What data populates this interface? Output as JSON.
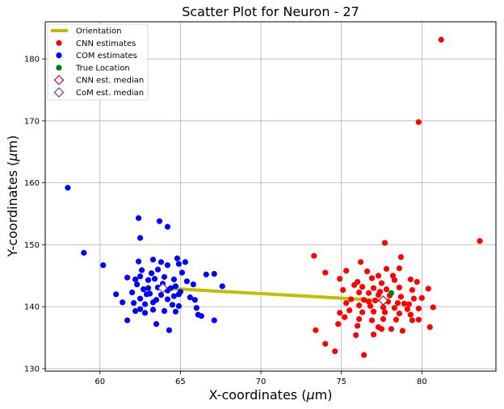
{
  "chart_data": {
    "type": "scatter",
    "title": "Scatter Plot for Neuron - 27",
    "xlabel_prefix": "X-coordinates (",
    "xlabel_unit_greek": "μ",
    "xlabel_unit_rest": "m)",
    "ylabel_prefix": "Y-coordinates (",
    "ylabel_unit_greek": "μ",
    "ylabel_unit_rest": "m)",
    "xlim": [
      56.6,
      84.6
    ],
    "ylim": [
      129.6,
      186.0
    ],
    "xticks": [
      60,
      65,
      70,
      75,
      80
    ],
    "yticks": [
      130,
      140,
      150,
      160,
      170,
      180
    ],
    "grid": true,
    "legend_position": "top-left",
    "legend": [
      {
        "label": "Orientation",
        "kind": "line",
        "color": "#bfbf00"
      },
      {
        "label": "CNN estimates",
        "kind": "dot",
        "color": "#ff0000"
      },
      {
        "label": "COM estimates",
        "kind": "dot",
        "color": "#0000ff"
      },
      {
        "label": "True Location",
        "kind": "dot",
        "color": "#008000"
      },
      {
        "label": "CNN est. median",
        "kind": "diamond",
        "color": "#c8102e"
      },
      {
        "label": "CoM est. median",
        "kind": "diamond",
        "color": "#7030a0"
      }
    ],
    "series": [
      {
        "name": "CNN estimates",
        "color": "#ff0000",
        "points": [
          [
            81.2,
            183.1
          ],
          [
            79.8,
            169.8
          ],
          [
            83.6,
            150.6
          ],
          [
            77.7,
            150.3
          ],
          [
            73.3,
            148.2
          ],
          [
            78.7,
            148.0
          ],
          [
            76.2,
            147.2
          ],
          [
            75.3,
            145.8
          ],
          [
            76.6,
            145.7
          ],
          [
            74.0,
            145.5
          ],
          [
            77.8,
            146.1
          ],
          [
            78.6,
            146.2
          ],
          [
            77.3,
            145.0
          ],
          [
            76.9,
            144.6
          ],
          [
            74.9,
            144.5
          ],
          [
            76.0,
            144.0
          ],
          [
            77.5,
            143.8
          ],
          [
            78.3,
            144.3
          ],
          [
            79.3,
            144.4
          ],
          [
            79.7,
            144.0
          ],
          [
            76.3,
            143.2
          ],
          [
            77.0,
            143.0
          ],
          [
            77.8,
            142.8
          ],
          [
            78.6,
            143.1
          ],
          [
            79.4,
            142.7
          ],
          [
            80.4,
            142.9
          ],
          [
            75.1,
            142.7
          ],
          [
            76.1,
            142.3
          ],
          [
            76.7,
            142.2
          ],
          [
            77.3,
            141.9
          ],
          [
            78.0,
            141.8
          ],
          [
            78.7,
            141.6
          ],
          [
            79.5,
            141.3
          ],
          [
            80.0,
            141.4
          ],
          [
            75.6,
            141.2
          ],
          [
            76.4,
            141.1
          ],
          [
            77.1,
            141.0
          ],
          [
            77.9,
            140.8
          ],
          [
            78.5,
            140.6
          ],
          [
            79.2,
            140.4
          ],
          [
            75.3,
            140.6
          ],
          [
            76.1,
            140.2
          ],
          [
            76.8,
            140.1
          ],
          [
            77.6,
            139.9
          ],
          [
            78.3,
            139.8
          ],
          [
            79.1,
            139.6
          ],
          [
            79.8,
            139.7
          ],
          [
            80.7,
            139.9
          ],
          [
            74.9,
            139.0
          ],
          [
            75.5,
            139.4
          ],
          [
            76.3,
            139.1
          ],
          [
            77.0,
            139.2
          ],
          [
            77.7,
            139.1
          ],
          [
            78.6,
            138.9
          ],
          [
            79.3,
            138.7
          ],
          [
            75.2,
            138.3
          ],
          [
            76.1,
            138.0
          ],
          [
            76.9,
            137.8
          ],
          [
            77.6,
            138.0
          ],
          [
            78.4,
            137.9
          ],
          [
            79.4,
            137.8
          ],
          [
            74.8,
            137.2
          ],
          [
            76.0,
            136.9
          ],
          [
            77.3,
            136.7
          ],
          [
            78.1,
            136.4
          ],
          [
            78.8,
            136.1
          ],
          [
            80.5,
            136.7
          ],
          [
            73.4,
            136.2
          ],
          [
            75.9,
            135.4
          ],
          [
            77.0,
            135.5
          ],
          [
            77.5,
            136.4
          ],
          [
            74.0,
            134.0
          ],
          [
            74.6,
            132.8
          ],
          [
            76.4,
            132.2
          ],
          [
            79.8,
            137.9
          ],
          [
            76.7,
            140.8
          ],
          [
            78.9,
            140.5
          ],
          [
            77.4,
            142.4
          ],
          [
            75.8,
            143.5
          ],
          [
            78.2,
            145.0
          ]
        ]
      },
      {
        "name": "COM estimates",
        "color": "#0000ff",
        "points": [
          [
            58.0,
            159.2
          ],
          [
            62.4,
            154.3
          ],
          [
            63.7,
            153.8
          ],
          [
            64.2,
            152.9
          ],
          [
            62.5,
            151.1
          ],
          [
            59.0,
            148.7
          ],
          [
            64.8,
            147.8
          ],
          [
            65.3,
            147.2
          ],
          [
            63.3,
            147.6
          ],
          [
            62.4,
            147.3
          ],
          [
            63.8,
            147.2
          ],
          [
            60.2,
            146.7
          ],
          [
            64.2,
            146.7
          ],
          [
            64.9,
            146.9
          ],
          [
            62.6,
            145.9
          ],
          [
            63.6,
            146.0
          ],
          [
            66.6,
            145.2
          ],
          [
            67.1,
            145.3
          ],
          [
            63.2,
            145.4
          ],
          [
            62.5,
            144.9
          ],
          [
            61.7,
            144.7
          ],
          [
            62.2,
            144.4
          ],
          [
            63.0,
            144.3
          ],
          [
            64.6,
            144.4
          ],
          [
            65.4,
            144.1
          ],
          [
            63.9,
            143.7
          ],
          [
            64.7,
            143.3
          ],
          [
            62.3,
            143.6
          ],
          [
            63.6,
            143.1
          ],
          [
            65.8,
            143.6
          ],
          [
            67.6,
            143.3
          ],
          [
            62.7,
            142.8
          ],
          [
            64.2,
            142.6
          ],
          [
            65.0,
            142.4
          ],
          [
            63.1,
            142.1
          ],
          [
            62.0,
            142.3
          ],
          [
            61.0,
            142.0
          ],
          [
            63.8,
            141.9
          ],
          [
            64.6,
            141.7
          ],
          [
            65.6,
            141.5
          ],
          [
            62.5,
            141.3
          ],
          [
            63.5,
            141.1
          ],
          [
            64.2,
            141.2
          ],
          [
            65.9,
            141.1
          ],
          [
            61.4,
            140.7
          ],
          [
            62.1,
            140.6
          ],
          [
            62.8,
            140.4
          ],
          [
            63.3,
            140.7
          ],
          [
            64.5,
            140.3
          ],
          [
            64.9,
            140.1
          ],
          [
            62.5,
            139.6
          ],
          [
            63.3,
            139.5
          ],
          [
            64.0,
            139.3
          ],
          [
            64.7,
            139.2
          ],
          [
            66.0,
            139.8
          ],
          [
            62.2,
            139.3
          ],
          [
            66.1,
            138.7
          ],
          [
            66.3,
            138.5
          ],
          [
            61.7,
            137.8
          ],
          [
            67.1,
            137.8
          ],
          [
            63.5,
            137.2
          ],
          [
            64.3,
            136.2
          ],
          [
            62.8,
            139.0
          ],
          [
            63.0,
            143.0
          ],
          [
            64.0,
            144.8
          ],
          [
            65.1,
            145.5
          ],
          [
            62.9,
            142.0
          ],
          [
            64.4,
            143.0
          ],
          [
            63.4,
            144.5
          ],
          [
            64.9,
            142.0
          ]
        ]
      },
      {
        "name": "True Location",
        "color": "#008000",
        "points": [
          [
            78.1,
            142.2
          ]
        ]
      },
      {
        "name": "CNN est. median",
        "color": "#c8102e",
        "points": [
          [
            77.6,
            141.0
          ]
        ]
      },
      {
        "name": "CoM est. median",
        "color": "#7030a0",
        "points": [
          [
            63.9,
            143.0
          ]
        ]
      }
    ],
    "orientation_line": {
      "name": "Orientation",
      "color": "#bfbf00",
      "from": [
        63.9,
        143.0
      ],
      "to": [
        77.6,
        141.0
      ]
    }
  }
}
